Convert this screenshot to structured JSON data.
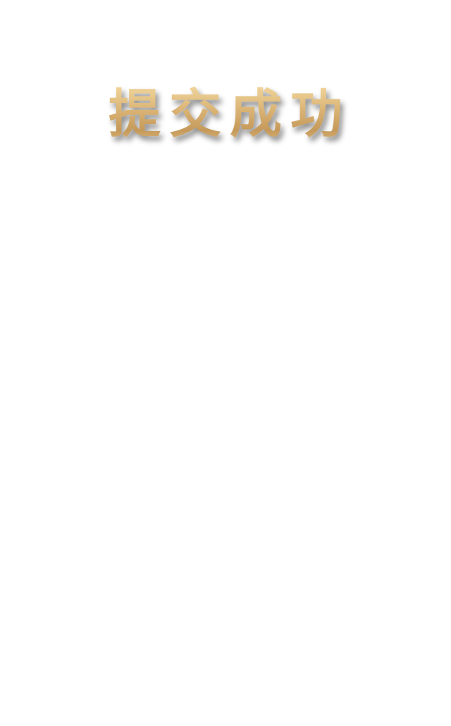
{
  "page": {
    "title": "提交成功",
    "colors": {
      "background": "#ffffff",
      "title_gold_light": "#f3d9a2",
      "title_gold_mid": "#dcb677",
      "title_gold_dark": "#c5995a"
    }
  }
}
